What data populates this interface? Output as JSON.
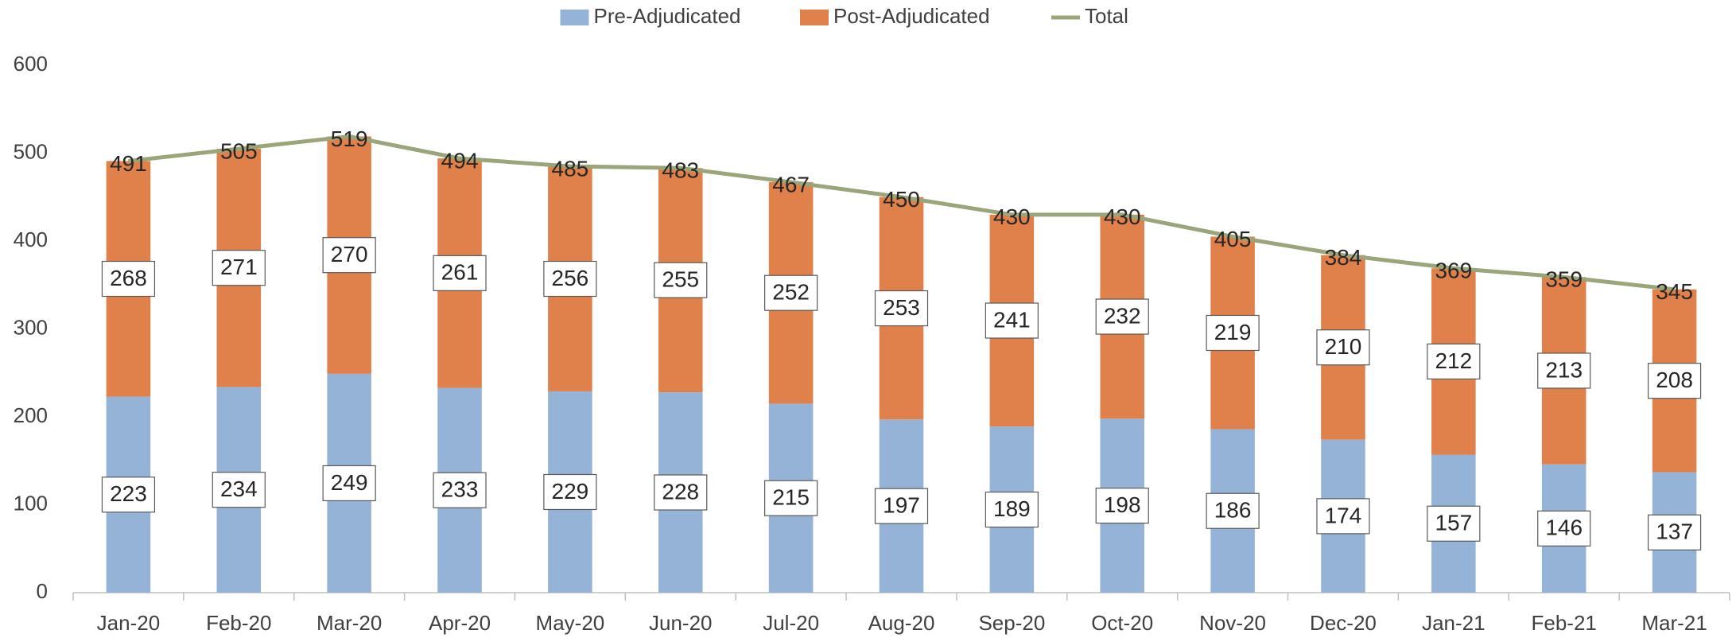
{
  "chart_data": {
    "type": "bar",
    "stacked": true,
    "categories": [
      "Jan-20",
      "Feb-20",
      "Mar-20",
      "Apr-20",
      "May-20",
      "Jun-20",
      "Jul-20",
      "Aug-20",
      "Sep-20",
      "Oct-20",
      "Nov-20",
      "Dec-20",
      "Jan-21",
      "Feb-21",
      "Mar-21"
    ],
    "series": [
      {
        "name": "Pre-Adjudicated",
        "type": "bar",
        "color": "#95b3d7",
        "values": [
          223,
          234,
          249,
          233,
          229,
          228,
          215,
          197,
          189,
          198,
          186,
          174,
          157,
          146,
          137
        ]
      },
      {
        "name": "Post-Adjudicated",
        "type": "bar",
        "color": "#e0804a",
        "values": [
          268,
          271,
          270,
          261,
          256,
          255,
          252,
          253,
          241,
          232,
          219,
          210,
          212,
          213,
          208
        ]
      },
      {
        "name": "Total",
        "type": "line",
        "color": "#9aa57a",
        "values": [
          491,
          505,
          519,
          494,
          485,
          483,
          467,
          450,
          430,
          430,
          405,
          384,
          369,
          359,
          345
        ]
      }
    ],
    "ylim": [
      0,
      600
    ],
    "yticks": [
      0,
      100,
      200,
      300,
      400,
      500,
      600
    ],
    "grid": false,
    "legend": "top"
  }
}
